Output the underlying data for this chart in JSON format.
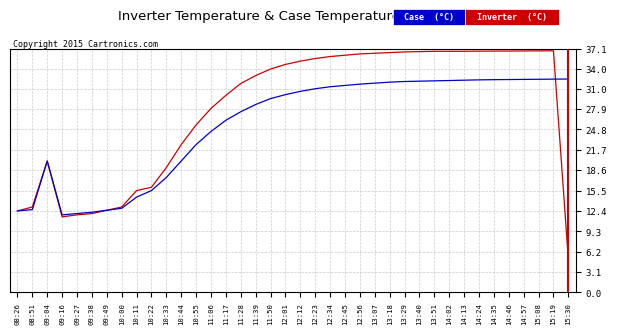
{
  "title": "Inverter Temperature & Case Temperature Thu Jan 8 15:37",
  "copyright": "Copyright 2015 Cartronics.com",
  "bg_color": "#ffffff",
  "plot_bg_color": "#ffffff",
  "grid_color": "#cccccc",
  "case_color": "#0000cc",
  "inverter_color": "#cc0000",
  "yticks": [
    0.0,
    3.1,
    6.2,
    9.3,
    12.4,
    15.5,
    18.6,
    21.7,
    24.8,
    27.9,
    31.0,
    34.0,
    37.1
  ],
  "ymin": 0.0,
  "ymax": 37.1,
  "xtick_labels": [
    "08:26",
    "08:51",
    "09:04",
    "09:16",
    "09:27",
    "09:38",
    "09:49",
    "10:00",
    "10:11",
    "10:22",
    "10:33",
    "10:44",
    "10:55",
    "11:06",
    "11:17",
    "11:28",
    "11:39",
    "11:50",
    "12:01",
    "12:12",
    "12:23",
    "12:34",
    "12:45",
    "12:56",
    "13:07",
    "13:18",
    "13:29",
    "13:40",
    "13:51",
    "14:02",
    "14:13",
    "14:24",
    "14:35",
    "14:46",
    "14:57",
    "15:08",
    "15:19",
    "15:30"
  ],
  "n_points": 38,
  "legend_case_label": "Case  (°C)",
  "legend_inv_label": "Inverter  (°C)",
  "case_data": [
    12.4,
    13.0,
    20.0,
    11.5,
    11.8,
    12.0,
    12.5,
    13.0,
    15.5,
    16.0,
    19.0,
    22.5,
    25.5,
    28.0,
    30.0,
    31.8,
    33.0,
    34.0,
    34.7,
    35.2,
    35.6,
    35.9,
    36.1,
    36.3,
    36.4,
    36.5,
    36.6,
    36.65,
    36.7,
    36.7,
    36.7,
    36.72,
    36.73,
    36.74,
    36.75,
    36.76,
    36.77,
    5.0
  ],
  "inv_data": [
    12.4,
    12.6,
    20.0,
    11.8,
    12.0,
    12.2,
    12.5,
    12.8,
    14.5,
    15.5,
    17.5,
    20.0,
    22.5,
    24.5,
    26.2,
    27.5,
    28.6,
    29.5,
    30.1,
    30.6,
    31.0,
    31.3,
    31.5,
    31.7,
    31.85,
    32.0,
    32.1,
    32.15,
    32.2,
    32.25,
    32.3,
    32.35,
    32.38,
    32.4,
    32.42,
    32.44,
    32.46,
    32.48
  ]
}
